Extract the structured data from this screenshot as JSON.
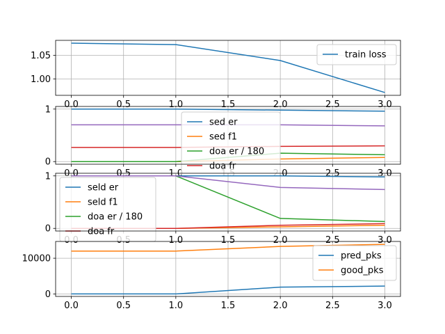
{
  "colors": {
    "blue": "#1f77b4",
    "orange": "#ff7f0e",
    "green": "#2ca02c",
    "red": "#d62728",
    "purple": "#9467bd"
  },
  "chart_data": [
    {
      "type": "line",
      "x": [
        0,
        1,
        2,
        3
      ],
      "ylim": [
        0.965,
        1.082
      ],
      "yticks": [
        1.0,
        1.05
      ],
      "ytick_labels": [
        "1.00",
        "1.05"
      ],
      "grid": true,
      "legend_position": "upper-right",
      "series": [
        {
          "name": "train loss",
          "color": "#1f77b4",
          "values": [
            1.076,
            1.073,
            1.039,
            0.971
          ]
        }
      ]
    },
    {
      "type": "line",
      "x": [
        0,
        1,
        2,
        3
      ],
      "ylim": [
        -0.05,
        1.05
      ],
      "yticks": [
        0,
        1
      ],
      "ytick_labels": [
        "0",
        "1"
      ],
      "grid": true,
      "legend_position": "center",
      "series": [
        {
          "name": "sed er",
          "color": "#1f77b4",
          "values": [
            1.0,
            1.0,
            0.98,
            0.96
          ]
        },
        {
          "name": "sed f1",
          "color": "#ff7f0e",
          "values": [
            0.0,
            0.0,
            0.05,
            0.08
          ]
        },
        {
          "name": "doa er / 180",
          "color": "#2ca02c",
          "values": [
            0.0,
            0.0,
            0.16,
            0.13
          ]
        },
        {
          "name": "doa fr",
          "color": "#d62728",
          "values": [
            0.27,
            0.27,
            0.29,
            0.3
          ]
        },
        {
          "name": "",
          "color": "#9467bd",
          "values": [
            0.7,
            0.7,
            0.7,
            0.68
          ]
        }
      ]
    },
    {
      "type": "line",
      "x": [
        0,
        1,
        2,
        3
      ],
      "ylim": [
        -0.05,
        1.05
      ],
      "yticks": [
        0,
        1
      ],
      "ytick_labels": [
        "0",
        "1"
      ],
      "grid": true,
      "legend_position": "upper-left",
      "series": [
        {
          "name": "seld er",
          "color": "#1f77b4",
          "values": [
            1.0,
            1.0,
            1.0,
            0.98
          ]
        },
        {
          "name": "seld f1",
          "color": "#ff7f0e",
          "values": [
            0.0,
            0.0,
            0.03,
            0.06
          ]
        },
        {
          "name": "doa er / 180",
          "color": "#2ca02c",
          "values": [
            1.0,
            1.0,
            0.19,
            0.13
          ]
        },
        {
          "name": "doa fr",
          "color": "#d62728",
          "values": [
            0.0,
            0.0,
            0.06,
            0.09
          ]
        },
        {
          "name": "",
          "color": "#9467bd",
          "values": [
            1.0,
            1.0,
            0.78,
            0.74
          ]
        }
      ]
    },
    {
      "type": "line",
      "x": [
        0,
        1,
        2,
        3
      ],
      "ylim": [
        -700,
        14700
      ],
      "yticks": [
        0,
        10000
      ],
      "ytick_labels": [
        "0",
        "10000"
      ],
      "xticks": [
        0,
        0.5,
        1,
        1.5,
        2,
        2.5,
        3
      ],
      "xtick_labels": [
        "0.0",
        "0.5",
        "1.0",
        "1.5",
        "2.0",
        "2.5",
        "3.0"
      ],
      "grid": true,
      "legend_position": "upper-right",
      "series": [
        {
          "name": "pred_pks",
          "color": "#1f77b4",
          "values": [
            0,
            0,
            1900,
            2200
          ]
        },
        {
          "name": "good_pks",
          "color": "#ff7f0e",
          "values": [
            12000,
            12000,
            13300,
            13900
          ]
        }
      ]
    }
  ]
}
